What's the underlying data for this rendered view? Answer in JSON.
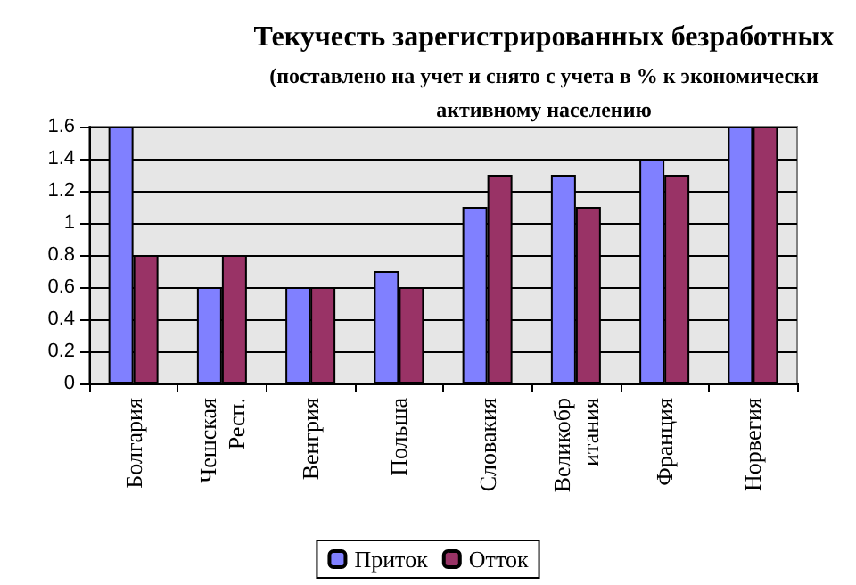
{
  "chart_data": {
    "type": "bar",
    "title": "Текучесть зарегистрированных безработных",
    "subtitle": "(поставлено на учет и снято с учета в % к экономически\nактивному населению",
    "categories": [
      "Болгария",
      "Чешская\nРесп.",
      "Венгрия",
      "Польша",
      "Словакия",
      "Великобр\nитания",
      "Франция",
      "Норвегия"
    ],
    "series": [
      {
        "name": "Приток",
        "color": "#8080ff",
        "values": [
          1.6,
          0.6,
          0.6,
          0.7,
          1.1,
          1.3,
          1.4,
          1.6
        ]
      },
      {
        "name": "Отток",
        "color": "#993366",
        "values": [
          0.8,
          0.8,
          0.6,
          0.6,
          1.3,
          1.1,
          1.3,
          1.6
        ]
      }
    ],
    "ylim": [
      0,
      1.6
    ],
    "yticks": [
      0,
      0.2,
      0.4,
      0.6,
      0.8,
      1,
      1.2,
      1.4,
      1.6
    ],
    "grid": "y",
    "legend": "bottom"
  }
}
